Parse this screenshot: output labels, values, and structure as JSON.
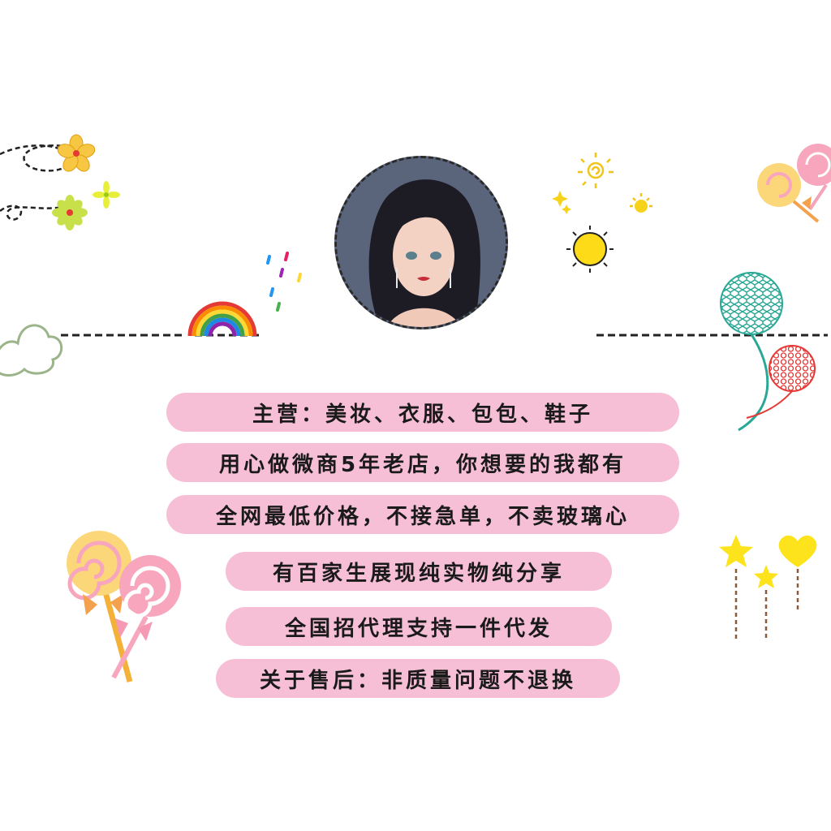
{
  "lines": [
    "主营：美妆、衣服、包包、鞋子",
    "用心做微商5年老店，你想要的我都有",
    "全网最低价格，不接急单，不卖玻璃心",
    "有百家生展现纯实物纯分享",
    "全国招代理支持一件代发",
    "关于售后：非质量问题不退换"
  ],
  "colors": {
    "pill": "#f6bfd6",
    "text": "#1a1a1a",
    "background": "#ffffff"
  },
  "icons": [
    "flower-icon",
    "rainbow-icon",
    "raindrops-icon",
    "sun-icon",
    "sparkle-icon",
    "lollipop-icon",
    "balloon-icon",
    "star-icon",
    "heart-icon",
    "cloud-icon"
  ]
}
